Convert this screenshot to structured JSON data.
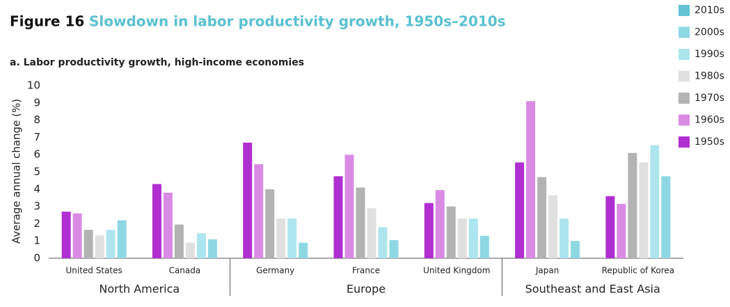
{
  "chart_data": {
    "type": "bar",
    "title": "Figure 16",
    "subtitle": "Slowdown in labor productivity growth, 1950s–2010s",
    "panel_title": "a. Labor productivity growth, high-income economies",
    "y_label": "Average annual change (%)",
    "categories": [
      "United States",
      "Canada",
      "Germany",
      "France",
      "United Kingdom",
      "Japan",
      "Republic of Korea"
    ],
    "groups": [
      {
        "name": "North America",
        "members": [
          "United States",
          "Canada"
        ]
      },
      {
        "name": "Europe",
        "members": [
          "Germany",
          "France",
          "United Kingdom"
        ]
      },
      {
        "name": "Southeast and East Asia",
        "members": [
          "Japan",
          "Republic of Korea"
        ]
      }
    ],
    "series": [
      {
        "name": "1950s",
        "color": "#b02fd0",
        "values": [
          2.7,
          4.3,
          6.7,
          4.75,
          3.2,
          5.55,
          3.6
        ]
      },
      {
        "name": "1960s",
        "color": "#d98be4",
        "values": [
          2.6,
          3.8,
          5.45,
          6.0,
          3.95,
          9.1,
          3.15
        ]
      },
      {
        "name": "1970s",
        "color": "#b3b3b3",
        "values": [
          1.65,
          1.95,
          4.0,
          4.1,
          3.0,
          4.7,
          6.1
        ]
      },
      {
        "name": "1980s",
        "color": "#e0e0e0",
        "values": [
          1.33,
          0.9,
          2.3,
          2.9,
          2.3,
          3.65,
          5.55
        ]
      },
      {
        "name": "1990s",
        "color": "#ade5ee",
        "values": [
          1.65,
          1.45,
          2.3,
          1.8,
          2.3,
          2.3,
          6.55
        ]
      },
      {
        "name": "2000s",
        "color": "#8dd8e3",
        "values": [
          2.2,
          1.1,
          0.9,
          1.05,
          1.3,
          1.0,
          4.75
        ]
      },
      {
        "name": "2010s",
        "color": "#62c3d4",
        "values": [
          null,
          null,
          null,
          null,
          null,
          null,
          null
        ]
      }
    ],
    "ylim": [
      0,
      10
    ],
    "yticks": [
      0,
      1,
      2,
      3,
      4,
      5,
      6,
      7,
      8,
      9,
      10
    ],
    "grid": false,
    "legend": "right"
  }
}
